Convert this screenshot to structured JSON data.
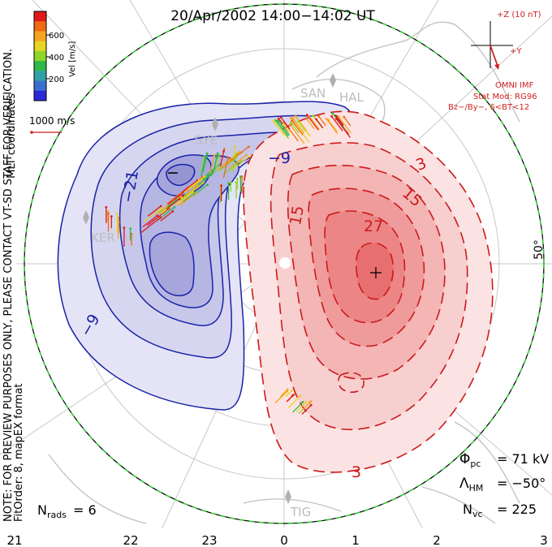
{
  "title": "20/Apr/2002 14:00−14:02 UT",
  "color_scale": {
    "label": "Vel [m/s]",
    "ticks": [
      "600",
      "400",
      "200"
    ],
    "colors": [
      "#e0181a",
      "#f06a12",
      "#f7a320",
      "#e8d423",
      "#8ed62a",
      "#2eb84a",
      "#2fa0a8",
      "#3a6fd0",
      "#2a2ad8"
    ]
  },
  "coord_label": "MLT coordinates",
  "vector_scale": "1000 m/s",
  "note_line1": "NOTE: FOR PREVIEW PURPOSES ONLY, PLEASE CONTACT VT-SD STAFF FOR VERIFICATION.",
  "note_line2": "FitOrder: 8, mapEX format",
  "imf": {
    "z_label": "+Z (10 nT)",
    "y_label": "+Y",
    "source": "OMNI IMF",
    "model": "Stat Mod: RG96",
    "condition": "Bz−/By−, 6<BT<12"
  },
  "stats": {
    "phi_pc": "= 71 kV",
    "lambda_hm": "= −50°",
    "n_vc": "= 225",
    "n_rads": "= 6"
  },
  "mlt_labels": [
    "21",
    "22",
    "23",
    "0",
    "1",
    "2",
    "3"
  ],
  "lat_label": "50°",
  "stations": [
    "SAN",
    "HAL",
    "SYE",
    "KER",
    "TIG"
  ],
  "contour_labels": {
    "negative": [
      "−9",
      "−21",
      "−9",
      "−"
    ],
    "positive": [
      "3",
      "15",
      "15",
      "27",
      "3"
    ]
  },
  "colors": {
    "negative_fill": "#c9c9ec",
    "negative_line": "#1a22a8",
    "positive_fill": "#f5b8b8",
    "positive_line": "#cc1a1a",
    "boundary": "#33cc33",
    "land": "#c8c8c8",
    "grid": "#c8c8c8"
  }
}
